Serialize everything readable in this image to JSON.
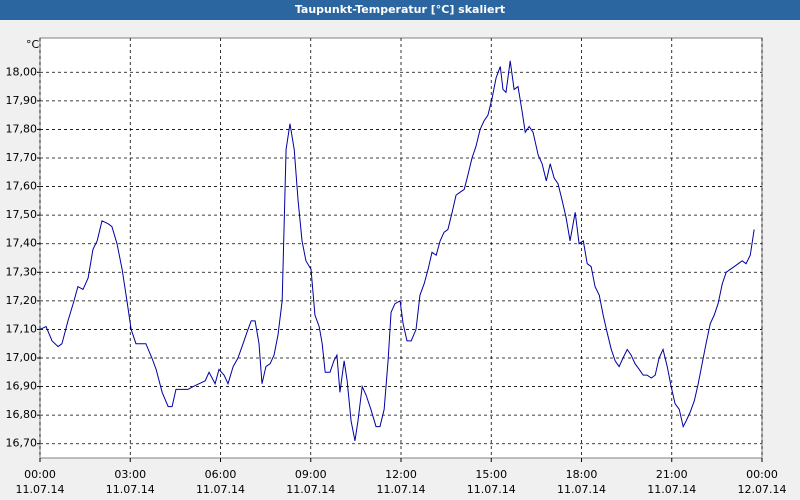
{
  "chart_data": {
    "type": "line",
    "title": "Taupunkt-Temperatur [°C] skaliert",
    "y_unit": "°C",
    "xlim": [
      0,
      24
    ],
    "xticks": [
      {
        "value": 0,
        "label": "00:00",
        "date": "11.07.14"
      },
      {
        "value": 3,
        "label": "03:00",
        "date": "11.07.14"
      },
      {
        "value": 6,
        "label": "06:00",
        "date": "11.07.14"
      },
      {
        "value": 9,
        "label": "09:00",
        "date": "11.07.14"
      },
      {
        "value": 12,
        "label": "12:00",
        "date": "11.07.14"
      },
      {
        "value": 15,
        "label": "15:00",
        "date": "11.07.14"
      },
      {
        "value": 18,
        "label": "18:00",
        "date": "11.07.14"
      },
      {
        "value": 21,
        "label": "21:00",
        "date": "11.07.14"
      },
      {
        "value": 24,
        "label": "00:00",
        "date": "12.07.14"
      }
    ],
    "ylim": [
      16.65,
      18.12
    ],
    "yticks": [
      {
        "value": 16.7,
        "label": "16,70"
      },
      {
        "value": 16.8,
        "label": "16,80"
      },
      {
        "value": 16.9,
        "label": "16,90"
      },
      {
        "value": 17.0,
        "label": "17,00"
      },
      {
        "value": 17.1,
        "label": "17,10"
      },
      {
        "value": 17.2,
        "label": "17,20"
      },
      {
        "value": 17.3,
        "label": "17,30"
      },
      {
        "value": 17.4,
        "label": "17,40"
      },
      {
        "value": 17.5,
        "label": "17,50"
      },
      {
        "value": 17.6,
        "label": "17,60"
      },
      {
        "value": 17.7,
        "label": "17,70"
      },
      {
        "value": 17.8,
        "label": "17,80"
      },
      {
        "value": 17.9,
        "label": "17,90"
      },
      {
        "value": 18.0,
        "label": "18,00"
      }
    ],
    "grid": true,
    "color": "#0000a0",
    "x": [
      0,
      0.2,
      0.4,
      0.6,
      0.73,
      0.93,
      1.13,
      1.26,
      1.43,
      1.6,
      1.76,
      1.9,
      2.06,
      2.26,
      2.39,
      2.56,
      2.73,
      2.89,
      3.03,
      3.19,
      3.36,
      3.52,
      3.72,
      3.86,
      4.06,
      4.26,
      4.39,
      4.52,
      4.72,
      4.92,
      5.09,
      5.29,
      5.49,
      5.62,
      5.82,
      5.95,
      6.12,
      6.25,
      6.42,
      6.58,
      6.75,
      6.88,
      7.02,
      7.15,
      7.28,
      7.38,
      7.51,
      7.65,
      7.78,
      7.91,
      8.05,
      8.18,
      8.31,
      8.45,
      8.58,
      8.71,
      8.84,
      9.01,
      9.14,
      9.28,
      9.38,
      9.48,
      9.64,
      9.77,
      9.87,
      9.97,
      10.11,
      10.21,
      10.34,
      10.47,
      10.57,
      10.71,
      10.84,
      11.0,
      11.17,
      11.3,
      11.44,
      11.57,
      11.67,
      11.8,
      11.97,
      12.07,
      12.2,
      12.34,
      12.5,
      12.63,
      12.77,
      12.9,
      13.03,
      13.17,
      13.3,
      13.43,
      13.56,
      13.7,
      13.83,
      13.96,
      14.1,
      14.2,
      14.36,
      14.49,
      14.63,
      14.76,
      14.89,
      15.03,
      15.16,
      15.3,
      15.39,
      15.49,
      15.63,
      15.76,
      15.89,
      16.03,
      16.13,
      16.26,
      16.39,
      16.56,
      16.69,
      16.83,
      16.96,
      17.09,
      17.22,
      17.36,
      17.49,
      17.62,
      17.79,
      17.92,
      18.06,
      18.19,
      18.32,
      18.45,
      18.59,
      18.72,
      18.85,
      18.99,
      19.12,
      19.25,
      19.38,
      19.52,
      19.65,
      19.78,
      19.92,
      20.05,
      20.18,
      20.32,
      20.45,
      20.58,
      20.71,
      20.85,
      20.98,
      21.11,
      21.25,
      21.38,
      21.48,
      21.61,
      21.75,
      21.88,
      22.01,
      22.14,
      22.28,
      22.41,
      22.54,
      22.68,
      22.81,
      22.94,
      23.08,
      23.21,
      23.34,
      23.47,
      23.61,
      23.74
    ],
    "values": [
      17.1,
      17.11,
      17.06,
      17.04,
      17.05,
      17.13,
      17.2,
      17.25,
      17.24,
      17.28,
      17.38,
      17.41,
      17.48,
      17.47,
      17.46,
      17.4,
      17.31,
      17.2,
      17.1,
      17.05,
      17.05,
      17.05,
      17.0,
      16.96,
      16.88,
      16.83,
      16.83,
      16.89,
      16.89,
      16.89,
      16.9,
      16.91,
      16.92,
      16.95,
      16.91,
      16.96,
      16.94,
      16.91,
      16.97,
      17.0,
      17.05,
      17.09,
      17.13,
      17.13,
      17.05,
      16.91,
      16.97,
      16.98,
      17.01,
      17.08,
      17.2,
      17.73,
      17.82,
      17.73,
      17.55,
      17.41,
      17.34,
      17.31,
      17.15,
      17.11,
      17.05,
      16.95,
      16.95,
      16.99,
      17.01,
      16.88,
      16.99,
      16.92,
      16.78,
      16.71,
      16.78,
      16.9,
      16.87,
      16.82,
      16.76,
      16.76,
      16.82,
      16.99,
      17.16,
      17.19,
      17.2,
      17.12,
      17.06,
      17.06,
      17.1,
      17.22,
      17.26,
      17.31,
      17.37,
      17.36,
      17.41,
      17.44,
      17.45,
      17.51,
      17.57,
      17.58,
      17.59,
      17.63,
      17.7,
      17.74,
      17.8,
      17.83,
      17.85,
      17.91,
      17.98,
      18.02,
      17.94,
      17.93,
      18.04,
      17.94,
      17.95,
      17.86,
      17.79,
      17.81,
      17.79,
      17.71,
      17.68,
      17.62,
      17.68,
      17.63,
      17.61,
      17.55,
      17.49,
      17.41,
      17.51,
      17.4,
      17.41,
      17.33,
      17.32,
      17.25,
      17.22,
      17.15,
      17.09,
      17.03,
      16.99,
      16.97,
      17.0,
      17.03,
      17.01,
      16.98,
      16.96,
      16.94,
      16.94,
      16.93,
      16.94,
      17.0,
      17.03,
      16.97,
      16.9,
      16.84,
      16.82,
      16.76,
      16.78,
      16.81,
      16.85,
      16.91,
      16.98,
      17.05,
      17.12,
      17.15,
      17.19,
      17.26,
      17.3,
      17.31,
      17.32,
      17.33,
      17.34,
      17.33,
      17.36,
      17.45
    ]
  }
}
